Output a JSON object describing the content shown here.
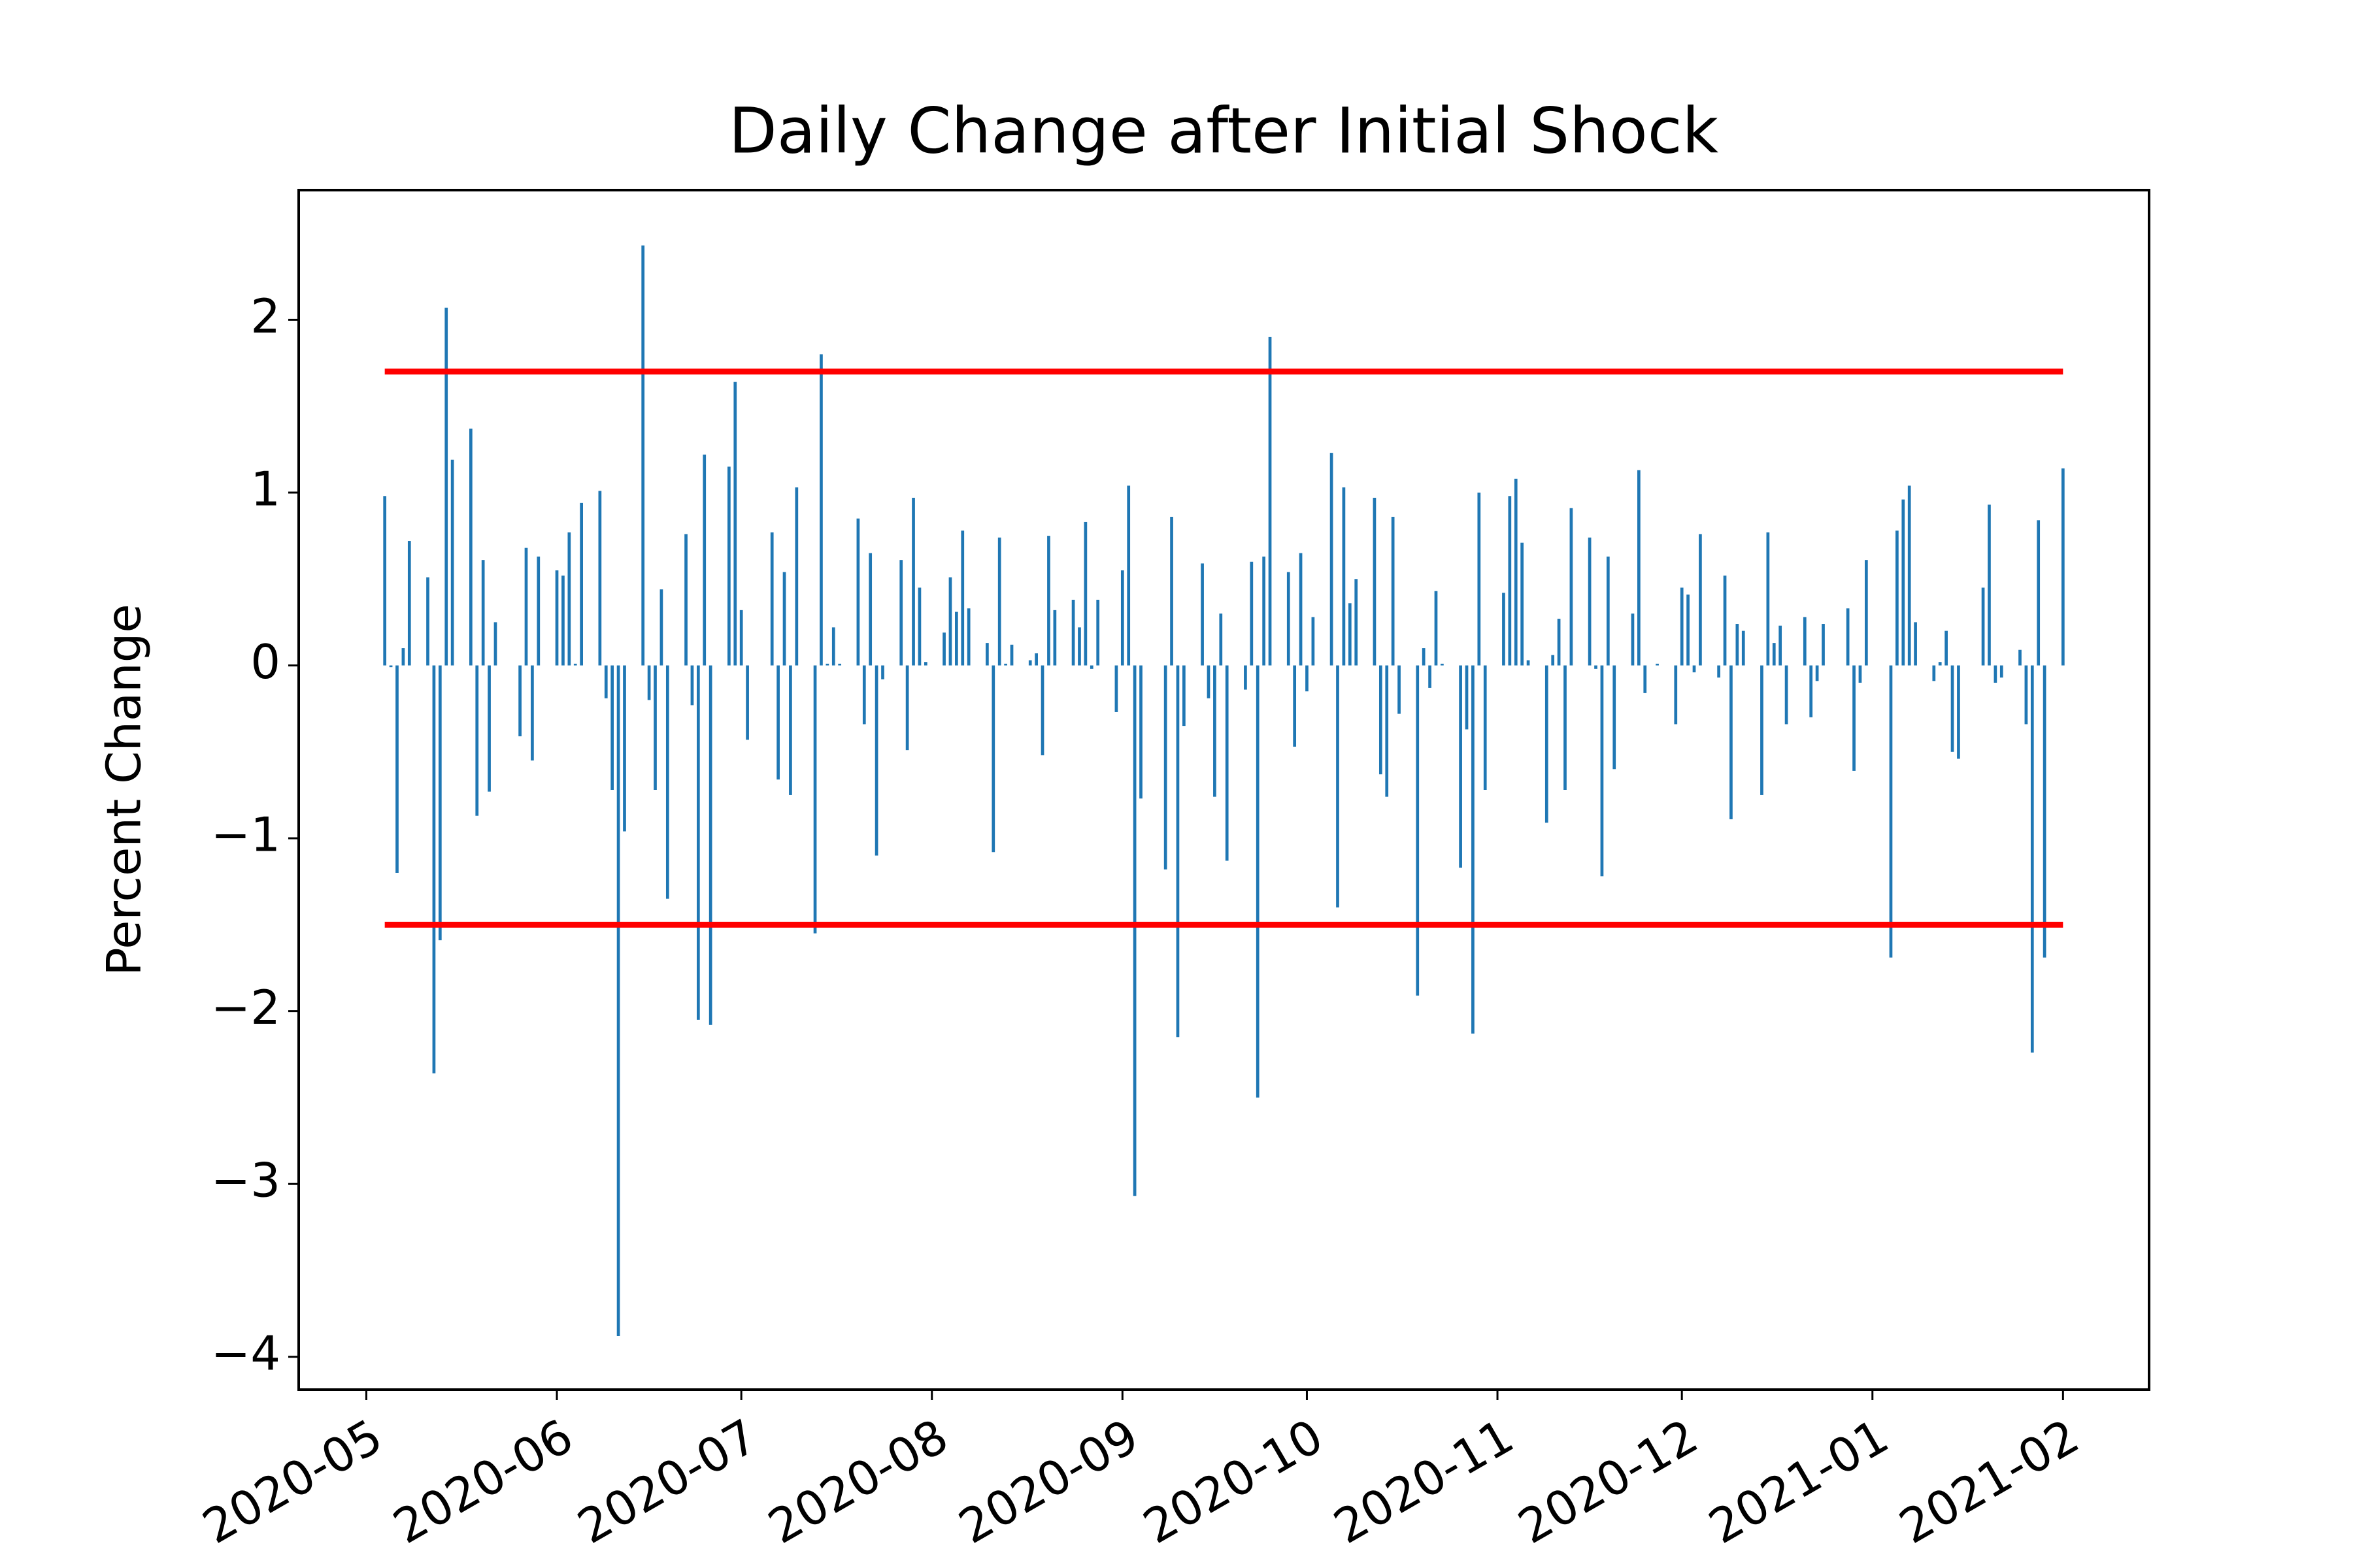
{
  "chart_data": {
    "type": "bar",
    "title": "Daily Change after Initial Shock",
    "ylabel": "Percent Change",
    "color": "#1f77b4",
    "x": [
      "2020-05-04",
      "2020-05-05",
      "2020-05-06",
      "2020-05-07",
      "2020-05-08",
      "2020-05-11",
      "2020-05-12",
      "2020-05-13",
      "2020-05-14",
      "2020-05-15",
      "2020-05-18",
      "2020-05-19",
      "2020-05-20",
      "2020-05-21",
      "2020-05-22",
      "2020-05-26",
      "2020-05-27",
      "2020-05-28",
      "2020-05-29",
      "2020-06-01",
      "2020-06-02",
      "2020-06-03",
      "2020-06-04",
      "2020-06-05",
      "2020-06-08",
      "2020-06-09",
      "2020-06-10",
      "2020-06-11",
      "2020-06-12",
      "2020-06-15",
      "2020-06-16",
      "2020-06-17",
      "2020-06-18",
      "2020-06-19",
      "2020-06-22",
      "2020-06-23",
      "2020-06-24",
      "2020-06-25",
      "2020-06-26",
      "2020-06-29",
      "2020-06-30",
      "2020-07-01",
      "2020-07-02",
      "2020-07-06",
      "2020-07-07",
      "2020-07-08",
      "2020-07-09",
      "2020-07-10",
      "2020-07-13",
      "2020-07-14",
      "2020-07-15",
      "2020-07-16",
      "2020-07-17",
      "2020-07-20",
      "2020-07-21",
      "2020-07-22",
      "2020-07-23",
      "2020-07-24",
      "2020-07-27",
      "2020-07-28",
      "2020-07-29",
      "2020-07-30",
      "2020-07-31",
      "2020-08-03",
      "2020-08-04",
      "2020-08-05",
      "2020-08-06",
      "2020-08-07",
      "2020-08-10",
      "2020-08-11",
      "2020-08-12",
      "2020-08-13",
      "2020-08-14",
      "2020-08-17",
      "2020-08-18",
      "2020-08-19",
      "2020-08-20",
      "2020-08-21",
      "2020-08-24",
      "2020-08-25",
      "2020-08-26",
      "2020-08-27",
      "2020-08-28",
      "2020-08-31",
      "2020-09-01",
      "2020-09-02",
      "2020-09-03",
      "2020-09-04",
      "2020-09-08",
      "2020-09-09",
      "2020-09-10",
      "2020-09-11",
      "2020-09-14",
      "2020-09-15",
      "2020-09-16",
      "2020-09-17",
      "2020-09-18",
      "2020-09-21",
      "2020-09-22",
      "2020-09-23",
      "2020-09-24",
      "2020-09-25",
      "2020-09-28",
      "2020-09-29",
      "2020-09-30",
      "2020-10-01",
      "2020-10-02",
      "2020-10-05",
      "2020-10-06",
      "2020-10-07",
      "2020-10-08",
      "2020-10-09",
      "2020-10-12",
      "2020-10-13",
      "2020-10-14",
      "2020-10-15",
      "2020-10-16",
      "2020-10-19",
      "2020-10-20",
      "2020-10-21",
      "2020-10-22",
      "2020-10-23",
      "2020-10-26",
      "2020-10-27",
      "2020-10-28",
      "2020-10-29",
      "2020-10-30",
      "2020-11-02",
      "2020-11-03",
      "2020-11-04",
      "2020-11-05",
      "2020-11-06",
      "2020-11-09",
      "2020-11-10",
      "2020-11-11",
      "2020-11-12",
      "2020-11-13",
      "2020-11-16",
      "2020-11-17",
      "2020-11-18",
      "2020-11-19",
      "2020-11-20",
      "2020-11-23",
      "2020-11-24",
      "2020-11-25",
      "2020-11-27",
      "2020-11-30",
      "2020-12-01",
      "2020-12-02",
      "2020-12-03",
      "2020-12-04",
      "2020-12-07",
      "2020-12-08",
      "2020-12-09",
      "2020-12-10",
      "2020-12-11",
      "2020-12-14",
      "2020-12-15",
      "2020-12-16",
      "2020-12-17",
      "2020-12-18",
      "2020-12-21",
      "2020-12-22",
      "2020-12-23",
      "2020-12-24",
      "2020-12-28",
      "2020-12-29",
      "2020-12-30",
      "2020-12-31",
      "2021-01-04",
      "2021-01-05",
      "2021-01-06",
      "2021-01-07",
      "2021-01-08",
      "2021-01-11",
      "2021-01-12",
      "2021-01-13",
      "2021-01-14",
      "2021-01-15",
      "2021-01-19",
      "2021-01-20",
      "2021-01-21",
      "2021-01-22",
      "2021-01-25",
      "2021-01-26",
      "2021-01-27",
      "2021-01-28",
      "2021-01-29",
      "2021-02-01"
    ],
    "values": [
      0.98,
      -0.01,
      -1.2,
      0.1,
      0.72,
      0.51,
      -2.36,
      -1.59,
      2.07,
      1.19,
      1.37,
      -0.87,
      0.61,
      -0.73,
      0.25,
      -0.41,
      0.68,
      -0.55,
      0.63,
      0.55,
      0.52,
      0.77,
      0.01,
      0.94,
      1.01,
      -0.19,
      -0.72,
      -3.88,
      -0.96,
      2.43,
      -0.2,
      -0.72,
      0.44,
      -1.35,
      0.76,
      -0.23,
      -2.05,
      1.22,
      -2.08,
      1.15,
      1.64,
      0.32,
      -0.43,
      0.77,
      -0.66,
      0.54,
      -0.75,
      1.03,
      -1.55,
      1.8,
      0.01,
      0.22,
      0.01,
      0.85,
      -0.34,
      0.65,
      -1.1,
      -0.08,
      0.61,
      -0.49,
      0.97,
      0.45,
      0.02,
      0.19,
      0.51,
      0.31,
      0.78,
      0.33,
      0.13,
      -1.08,
      0.74,
      0.01,
      0.12,
      0.03,
      0.07,
      -0.52,
      0.75,
      0.32,
      0.38,
      0.22,
      0.83,
      -0.02,
      0.38,
      -0.27,
      0.55,
      1.04,
      -3.07,
      -0.77,
      -1.18,
      0.86,
      -2.15,
      -0.35,
      0.59,
      -0.19,
      -0.76,
      0.3,
      -1.13,
      -0.14,
      0.6,
      -2.5,
      0.63,
      1.9,
      0.54,
      -0.47,
      0.65,
      -0.15,
      0.28,
      1.23,
      -1.4,
      1.03,
      0.36,
      0.5,
      0.97,
      -0.63,
      -0.76,
      0.86,
      -0.28,
      -1.91,
      0.1,
      -0.13,
      0.43,
      0.01,
      -1.17,
      -0.37,
      -2.13,
      1.0,
      -0.72,
      0.42,
      0.98,
      1.08,
      0.71,
      0.03,
      -0.91,
      0.06,
      0.27,
      -0.72,
      0.91,
      0.74,
      -0.02,
      -1.22,
      0.63,
      -0.6,
      0.3,
      1.13,
      -0.16,
      0.01,
      -0.34,
      0.45,
      0.41,
      -0.04,
      0.76,
      -0.07,
      0.52,
      -0.89,
      0.24,
      0.2,
      -0.75,
      0.77,
      0.13,
      0.23,
      -0.34,
      0.28,
      -0.3,
      -0.09,
      0.24,
      0.33,
      -0.61,
      -0.1,
      0.61,
      -1.69,
      0.78,
      0.96,
      1.04,
      0.25,
      -0.09,
      0.02,
      0.2,
      -0.5,
      -0.54,
      0.45,
      0.93,
      -0.1,
      -0.07,
      0.09,
      -0.34,
      -2.24,
      0.84,
      -1.69,
      1.14
    ],
    "hlines": [
      {
        "value": 1.7,
        "color": "#ff0000",
        "xmin": "2020-05-04",
        "xmax": "2021-02-01"
      },
      {
        "value": -1.5,
        "color": "#ff0000",
        "xmin": "2020-05-04",
        "xmax": "2021-02-01"
      }
    ],
    "xlim": [
      "2020-04-20",
      "2021-02-15"
    ],
    "xticks": [
      {
        "value": "2020-05-01",
        "label": "2020-05"
      },
      {
        "value": "2020-06-01",
        "label": "2020-06"
      },
      {
        "value": "2020-07-01",
        "label": "2020-07"
      },
      {
        "value": "2020-08-01",
        "label": "2020-08"
      },
      {
        "value": "2020-09-01",
        "label": "2020-09"
      },
      {
        "value": "2020-10-01",
        "label": "2020-10"
      },
      {
        "value": "2020-11-01",
        "label": "2020-11"
      },
      {
        "value": "2020-12-01",
        "label": "2020-12"
      },
      {
        "value": "2021-01-01",
        "label": "2021-01"
      },
      {
        "value": "2021-02-01",
        "label": "2021-02"
      }
    ],
    "ylim": [
      -4.19,
      2.75
    ],
    "yticks": [
      {
        "value": -4,
        "label": "−4"
      },
      {
        "value": -3,
        "label": "−3"
      },
      {
        "value": -2,
        "label": "−2"
      },
      {
        "value": -1,
        "label": "−1"
      },
      0,
      1,
      2
    ],
    "grid": false
  }
}
